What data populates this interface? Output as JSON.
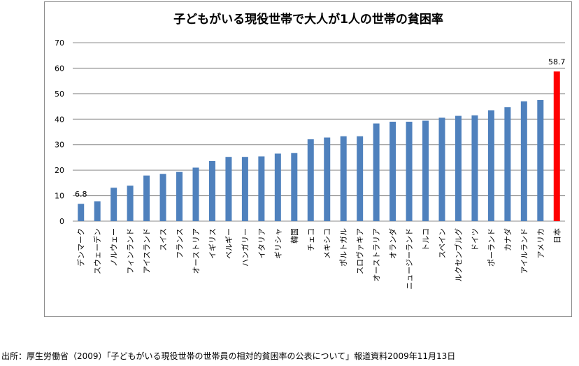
{
  "chart_data": {
    "type": "bar",
    "title": "子どもがいる現役世帯で大人が1人の世帯の貧困率",
    "xlabel": "",
    "ylabel": "",
    "ylim": [
      0,
      70
    ],
    "yticks": [
      "0",
      "10",
      "20",
      "30",
      "40",
      "50",
      "60",
      "70"
    ],
    "grid": true,
    "categories": [
      "デンマーク",
      "スウェーデン",
      "ノルウェー",
      "フィンランド",
      "アイスランド",
      "スイス",
      "フランス",
      "オーストリア",
      "イギリス",
      "ベルギー",
      "ハンガリー",
      "イタリア",
      "ギリシャ",
      "韓国",
      "チェコ",
      "メキシコ",
      "ポルトガル",
      "スロヴァキア",
      "オーストラリア",
      "オランダ",
      "ニュージーランド",
      "トルコ",
      "スペイン",
      "ルクセンブルグ",
      "ドイツ",
      "ポーランド",
      "カナダ",
      "アイルランド",
      "アメリカ",
      "日本"
    ],
    "values": [
      6.8,
      7.8,
      13.1,
      13.9,
      17.9,
      18.5,
      19.3,
      21.0,
      23.6,
      25.2,
      25.2,
      25.4,
      26.5,
      26.7,
      32.1,
      32.8,
      33.3,
      33.3,
      38.3,
      39.0,
      39.0,
      39.4,
      40.6,
      41.3,
      41.5,
      43.5,
      44.7,
      47.0,
      47.5,
      58.7
    ],
    "data_labels": [
      {
        "index": 0,
        "text": "6.8"
      },
      {
        "index": 29,
        "text": "58.7"
      }
    ],
    "colors": {
      "default": "#4F81BD",
      "highlight": "#FF0000",
      "grid": "#8c8c8c"
    },
    "highlight_index": 29
  },
  "source": "出所：厚生労働省（2009）「子どもがいる現役世帯の世帯員の相対的貧困率の公表について」報道資料2009年11月13日"
}
